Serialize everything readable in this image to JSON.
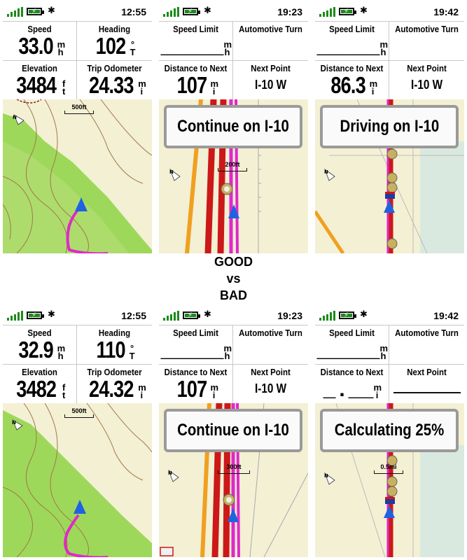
{
  "caption": {
    "line1": "GOOD",
    "line2": "vs",
    "line3": "BAD"
  },
  "good": {
    "p1": {
      "time": "12:55",
      "f1": {
        "label": "Speed",
        "value": "33.0",
        "u1": "m",
        "u2": "h"
      },
      "f2": {
        "label": "Heading",
        "value": "102",
        "u1": "°",
        "u2": "T"
      },
      "f3": {
        "label": "Elevation",
        "value": "3484",
        "u1": "f",
        "u2": "t"
      },
      "f4": {
        "label": "Trip Odometer",
        "value": "24.33",
        "u1": "m",
        "u2": "i"
      },
      "scale": "500ft"
    },
    "p2": {
      "time": "19:23",
      "f1": {
        "label": "Speed Limit",
        "value": "_____",
        "u1": "m",
        "u2": "h"
      },
      "f2": {
        "label": "Automotive Turn"
      },
      "f3": {
        "label": "Distance to Next",
        "value": "107",
        "u1": "m",
        "u2": "i"
      },
      "f4": {
        "label": "Next Point",
        "text": "I-10 W"
      },
      "banner": "Continue on I-10",
      "scale": "200ft"
    },
    "p3": {
      "time": "19:42",
      "f1": {
        "label": "Speed Limit",
        "value": "_____",
        "u1": "m",
        "u2": "h"
      },
      "f2": {
        "label": "Automotive Turn"
      },
      "f3": {
        "label": "Distance to Next",
        "value": "86.3",
        "u1": "m",
        "u2": "i"
      },
      "f4": {
        "label": "Next Point",
        "text": "I-10 W"
      },
      "banner": "Driving on I-10"
    }
  },
  "bad": {
    "p1": {
      "time": "12:55",
      "f1": {
        "label": "Speed",
        "value": "32.9",
        "u1": "m",
        "u2": "h"
      },
      "f2": {
        "label": "Heading",
        "value": "110",
        "u1": "°",
        "u2": "T"
      },
      "f3": {
        "label": "Elevation",
        "value": "3482",
        "u1": "f",
        "u2": "t"
      },
      "f4": {
        "label": "Trip Odometer",
        "value": "24.32",
        "u1": "m",
        "u2": "i"
      },
      "scale": "500ft"
    },
    "p2": {
      "time": "19:23",
      "f1": {
        "label": "Speed Limit",
        "value": "_____",
        "u1": "m",
        "u2": "h"
      },
      "f2": {
        "label": "Automotive Turn"
      },
      "f3": {
        "label": "Distance to Next",
        "value": "107",
        "u1": "m",
        "u2": "i"
      },
      "f4": {
        "label": "Next Point",
        "text": "I-10 W"
      },
      "banner": "Continue on I-10",
      "scale": "300ft"
    },
    "p3": {
      "time": "19:42",
      "f1": {
        "label": "Speed Limit",
        "value": "_____",
        "u1": "m",
        "u2": "h"
      },
      "f2": {
        "label": "Automotive Turn"
      },
      "f3": {
        "label": "Distance to Next",
        "value": "_.__",
        "u1": "m",
        "u2": "i"
      },
      "f4": {
        "label": "Next Point"
      },
      "banner": "Calculating 25%",
      "scale": "0.5mi"
    }
  },
  "colors": {
    "map_bg": "#f3f0d4",
    "park_green": "#9ed85a",
    "route_magenta": "#e028c8",
    "highway_red": "#cc1818",
    "road_orange": "#f0a020",
    "position_blue": "#1e64e0"
  }
}
